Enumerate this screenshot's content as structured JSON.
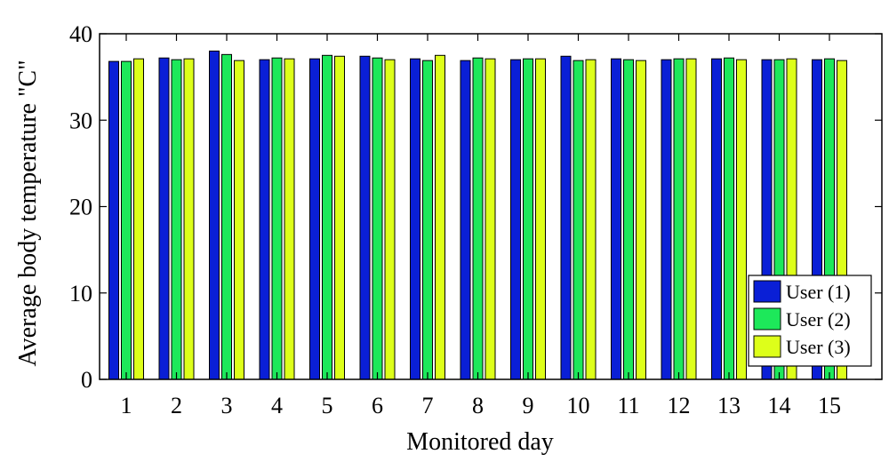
{
  "chart_data": {
    "type": "bar",
    "title": "",
    "xlabel": "Monitored day",
    "ylabel": "Average body temperature \"C\"",
    "ylim": [
      0,
      40
    ],
    "yticks": [
      0,
      10,
      20,
      30,
      40
    ],
    "grid": false,
    "legend_position": "bottom-right",
    "categories": [
      "1",
      "2",
      "3",
      "4",
      "5",
      "6",
      "7",
      "8",
      "9",
      "10",
      "11",
      "12",
      "13",
      "14",
      "15"
    ],
    "series": [
      {
        "name": "User (1)",
        "color": "#0a1fd6",
        "values": [
          36.8,
          37.2,
          38.0,
          37.0,
          37.1,
          37.4,
          37.1,
          36.9,
          37.0,
          37.4,
          37.1,
          37.0,
          37.1,
          37.0,
          37.0
        ]
      },
      {
        "name": "User (2)",
        "color": "#1de85a",
        "values": [
          36.8,
          37.0,
          37.6,
          37.2,
          37.5,
          37.2,
          36.9,
          37.2,
          37.1,
          36.9,
          37.0,
          37.1,
          37.2,
          37.0,
          37.1
        ]
      },
      {
        "name": "User (3)",
        "color": "#ddff1a",
        "values": [
          37.1,
          37.1,
          36.9,
          37.1,
          37.4,
          37.0,
          37.5,
          37.1,
          37.1,
          37.0,
          36.9,
          37.1,
          37.0,
          37.1,
          36.9
        ]
      }
    ]
  }
}
